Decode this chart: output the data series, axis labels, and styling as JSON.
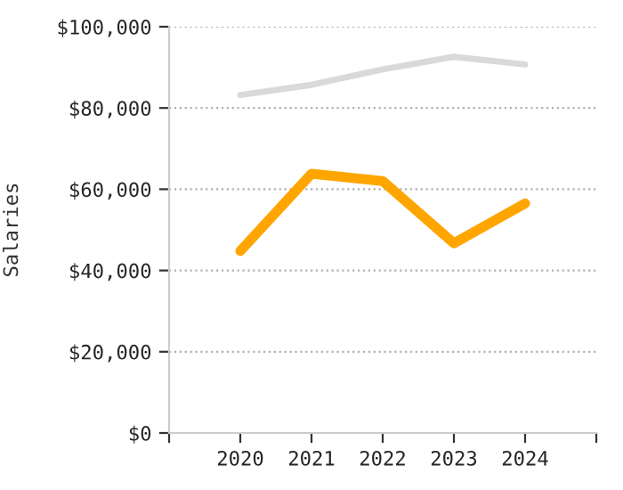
{
  "chart_data": {
    "type": "line",
    "ylabel": "Salaries",
    "x": [
      2020,
      2021,
      2022,
      2023,
      2024
    ],
    "series": [
      {
        "color": "#d9d9d9",
        "values": [
          83200,
          85700,
          89500,
          92600,
          90700
        ]
      },
      {
        "color": "#ffa500",
        "values": [
          44800,
          63800,
          62000,
          46700,
          56500
        ]
      }
    ],
    "xlim": [
      2019,
      2025
    ],
    "xticks": [
      {
        "value": 2019,
        "label": null
      },
      2020,
      2021,
      2022,
      2023,
      2024,
      {
        "value": 2025,
        "label": null
      }
    ],
    "ylim": [
      0,
      100000
    ],
    "yticks": [
      {
        "value": 0,
        "label": "$0"
      },
      {
        "value": 20000,
        "label": "$20,000"
      },
      {
        "value": 40000,
        "label": "$40,000"
      },
      {
        "value": 60000,
        "label": "$60,000"
      },
      {
        "value": 80000,
        "label": "$80,000"
      },
      {
        "value": 100000,
        "label": "$100,000"
      }
    ],
    "grid": "y",
    "legend": false,
    "marker": "none",
    "line_style": "solid"
  }
}
